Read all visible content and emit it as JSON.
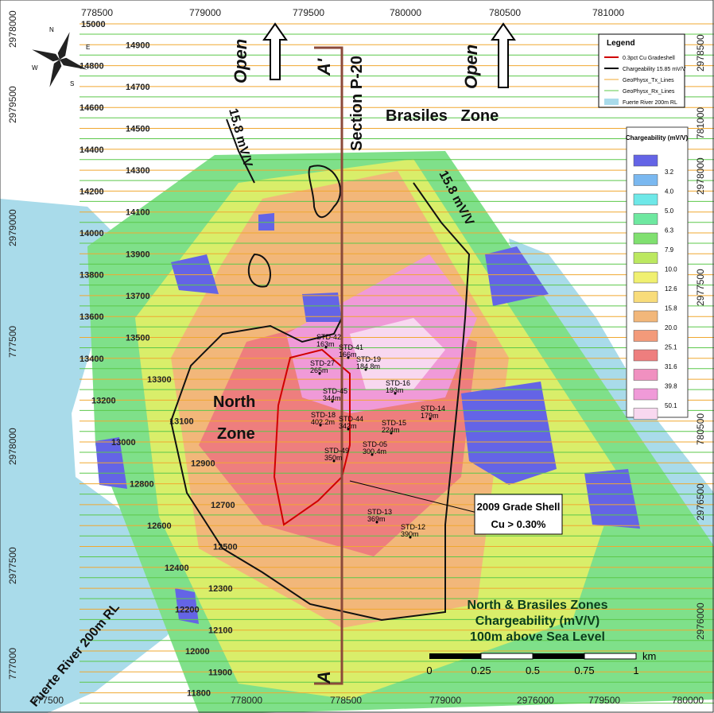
{
  "map": {
    "top_coords": [
      "778500",
      "779000",
      "779500",
      "780000",
      "780500",
      "781000"
    ],
    "left_coords": [
      "2978000",
      "2979500",
      "2979000",
      "777500",
      "2978000",
      "2977500",
      "777000"
    ],
    "right_coords": [
      "2978500",
      "781000",
      "2978000",
      "2977500",
      "780500",
      "2976500",
      "2976000"
    ],
    "bottom_coords": [
      "777500",
      "778000",
      "778500",
      "779000",
      "2976000",
      "779500",
      "780000"
    ],
    "grid_lines": [
      "15000",
      "14900",
      "14800",
      "14700",
      "14600",
      "14500",
      "14400",
      "14300",
      "14200",
      "14100",
      "14000",
      "13900",
      "13800",
      "13700",
      "13600",
      "13500",
      "13400",
      "13300",
      "13200",
      "13100",
      "13000",
      "12900",
      "12800",
      "12700",
      "12600",
      "12500",
      "12400",
      "12300",
      "12200",
      "12100",
      "12000",
      "11900",
      "11800"
    ],
    "legend": {
      "title": "Legend",
      "items": [
        "0.3pct Cu Gradeshell",
        "Chargeability 15.85 mV/V",
        "GeoPhysx_Tx_Lines",
        "GeoPhysx_Rx_Lines",
        "Fuerte River 200m RL"
      ]
    },
    "scale": {
      "title": "Chargeability (mV/V)",
      "values": [
        "3.2",
        "4.0",
        "5.0",
        "6.3",
        "7.9",
        "10.0",
        "12.6",
        "15.8",
        "20.0",
        "25.1",
        "31.6",
        "39.8",
        "50.1"
      ]
    },
    "compass": [
      "N",
      "E",
      "S",
      "W"
    ],
    "labels": {
      "open_left": "Open",
      "open_right": "Open",
      "a_prime": "A'",
      "a": "A",
      "section": "Section P-20",
      "contour_left": "15.8 mV/V",
      "contour_right": "15.8 mV/V",
      "brasiles": "Brasiles   Zone",
      "north_1": "North",
      "north_2": "Zone",
      "river": "Fuerte River 200m RL"
    },
    "callout": [
      "2009 Grade Shell",
      "Cu > 0.30%"
    ],
    "drillholes": [
      [
        "STD-42",
        "163m"
      ],
      [
        "STD-41",
        "166m"
      ],
      [
        "STD-27",
        "265m"
      ],
      [
        "STD-19",
        "184.8m"
      ],
      [
        "STD-45",
        "344m"
      ],
      [
        "STD-16",
        "193m"
      ],
      [
        "STD-14",
        "179m"
      ],
      [
        "STD-18",
        "402.2m"
      ],
      [
        "STD-44",
        "342m"
      ],
      [
        "STD-15",
        "224m"
      ],
      [
        "STD-05",
        "300.4m"
      ],
      [
        "STD-49",
        "350m"
      ],
      [
        "STD-13",
        "369m"
      ],
      [
        "STD-12",
        "390m"
      ]
    ],
    "title": [
      "North & Brasiles Zones",
      "Chargeability (mV/V)",
      "100m above Sea Level"
    ],
    "scalebar": [
      "0",
      "0.25",
      "0.5",
      "0.75",
      "1",
      "km"
    ]
  }
}
